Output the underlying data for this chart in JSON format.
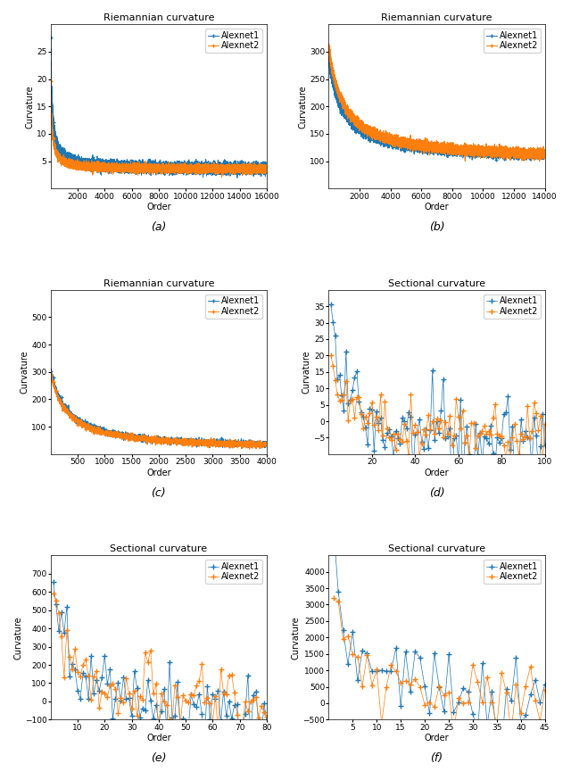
{
  "subplots": [
    {
      "title": "Riemannian curvature",
      "xlabel": "Order",
      "ylabel": "Curvature",
      "label": "(a)",
      "type": "riemannian",
      "n1": 16000,
      "n2": 16000,
      "y1_start": 27.0,
      "y2_start": 20.5,
      "y1_scale": 120,
      "y2_scale": 90,
      "y_floor": 3.5,
      "ylim": [
        0,
        30
      ],
      "xlim": [
        0,
        16000
      ],
      "yticks": [
        5,
        10,
        15,
        20,
        25
      ],
      "xticks": [
        2000,
        4000,
        6000,
        8000,
        10000,
        12000,
        14000,
        16000
      ],
      "xticklabels": [
        "2000",
        "4000",
        "6000",
        "8000",
        "10000",
        "12000",
        "14000",
        "16000"
      ]
    },
    {
      "title": "Riemannian curvature",
      "xlabel": "Order",
      "ylabel": "Curvature",
      "label": "(b)",
      "type": "riemannian",
      "n1": 14000,
      "n2": 14000,
      "y1_start": 285.0,
      "y2_start": 310.0,
      "y1_scale": 900,
      "y2_scale": 950,
      "y_floor": 100.0,
      "ylim": [
        50,
        350
      ],
      "xlim": [
        0,
        14000
      ],
      "yticks": [
        100,
        150,
        200,
        250,
        300
      ],
      "xticks": [
        2000,
        4000,
        6000,
        8000,
        10000,
        12000,
        14000
      ],
      "xticklabels": [
        "2000",
        "4000",
        "6000",
        "8000",
        "10000",
        "12000",
        "14000"
      ]
    },
    {
      "title": "Riemannian curvature",
      "xlabel": "Order",
      "ylabel": "Curvature",
      "label": "(c)",
      "type": "riemannian",
      "n1": 4000,
      "n2": 4000,
      "y1_start": 310.0,
      "y2_start": 300.0,
      "y1_scale": 300,
      "y2_scale": 290,
      "y_floor": 15.0,
      "ylim": [
        0,
        600
      ],
      "xlim": [
        0,
        4000
      ],
      "yticks": [
        100,
        200,
        300,
        400,
        500
      ],
      "xticks": [
        500,
        1000,
        1500,
        2000,
        2500,
        3000,
        3500,
        4000
      ],
      "xticklabels": [
        "500",
        "1000",
        "1500",
        "2000",
        "2500",
        "3000",
        "3500",
        "4000"
      ]
    },
    {
      "title": "Sectional curvature",
      "xlabel": "Order",
      "ylabel": "Curvature",
      "label": "(d)",
      "type": "sectional",
      "n1": 100,
      "n2": 100,
      "y1_start": 39.0,
      "y2_start": 24.0,
      "y1_scale": 6.0,
      "y2_scale": 5.5,
      "y_floor": -7.0,
      "y2_floor": -5.0,
      "ylim": [
        -10,
        40
      ],
      "xlim": [
        0,
        100
      ],
      "yticks": [
        -5,
        0,
        5,
        10,
        15,
        20,
        25,
        30,
        35
      ],
      "xticks": [
        20,
        40,
        60,
        80,
        100
      ],
      "xticklabels": [
        "20",
        "40",
        "60",
        "80",
        "100"
      ]
    },
    {
      "title": "Sectional curvature",
      "xlabel": "Order",
      "ylabel": "Curvature",
      "label": "(e)",
      "type": "sectional",
      "n1": 80,
      "n2": 80,
      "y1_start": 590.0,
      "y2_start": 720.0,
      "y1_scale": 6.0,
      "y2_scale": 5.0,
      "y_floor": -60.0,
      "y2_floor": -50.0,
      "ylim": [
        -100,
        800
      ],
      "xlim": [
        0,
        80
      ],
      "yticks": [
        -100,
        0,
        100,
        200,
        300,
        400,
        500,
        600,
        700
      ],
      "xticks": [
        10,
        20,
        30,
        40,
        50,
        60,
        70,
        80
      ],
      "xticklabels": [
        "10",
        "20",
        "30",
        "40",
        "50",
        "60",
        "70",
        "80"
      ]
    },
    {
      "title": "Sectional curvature",
      "xlabel": "Order",
      "ylabel": "Curvature",
      "label": "(f)",
      "type": "sectional",
      "n1": 45,
      "n2": 45,
      "y1_start": 4100.0,
      "y2_start": 3200.0,
      "y1_scale": 5.0,
      "y2_scale": 4.5,
      "y_floor": -200.0,
      "y2_floor": -150.0,
      "ylim": [
        -500,
        4500
      ],
      "xlim": [
        0,
        45
      ],
      "yticks": [
        -500,
        0,
        500,
        1000,
        1500,
        2000,
        2500,
        3000,
        3500,
        4000
      ],
      "xticks": [
        5,
        10,
        15,
        20,
        25,
        30,
        35,
        40,
        45
      ],
      "xticklabels": [
        "5",
        "10",
        "15",
        "20",
        "25",
        "30",
        "35",
        "40",
        "45"
      ]
    }
  ],
  "color1": "#1f77b4",
  "color2": "#ff7f0e",
  "legend_labels": [
    "Alexnet1",
    "Alexnet2"
  ],
  "figure_bg": "#ffffff",
  "axes_bg": "#ffffff",
  "title_fontsize": 8,
  "label_fontsize": 7,
  "tick_fontsize": 6.5,
  "legend_fontsize": 7,
  "linewidth": 0.7,
  "markersize": 3
}
